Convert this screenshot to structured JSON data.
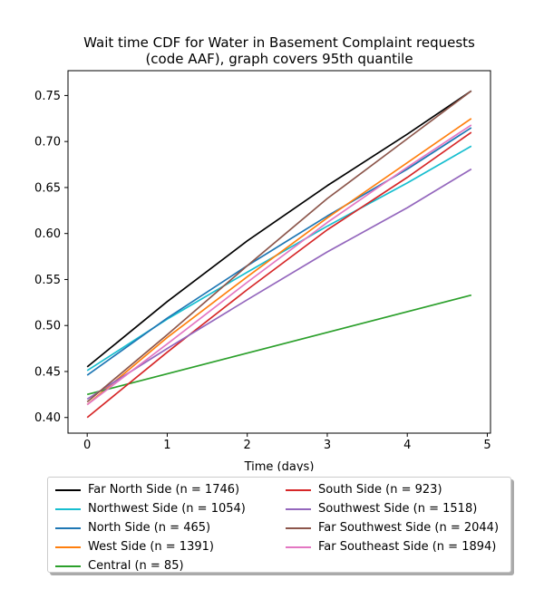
{
  "chart_data": {
    "type": "line",
    "title_line1": "Wait time CDF for Water in Basement Complaint  requests",
    "title_line2": "(code AAF), graph covers 95th quantile",
    "xlabel": "Time (days)",
    "ylabel": "",
    "xlim": [
      -0.24,
      5.04
    ],
    "ylim": [
      0.383,
      0.777
    ],
    "xticks": [
      0,
      1,
      2,
      3,
      4,
      5
    ],
    "xtick_labels": [
      "0",
      "1",
      "2",
      "3",
      "4",
      "5"
    ],
    "yticks": [
      0.4,
      0.45,
      0.5,
      0.55,
      0.6,
      0.65,
      0.7,
      0.75
    ],
    "ytick_labels": [
      "0.40",
      "0.45",
      "0.50",
      "0.55",
      "0.60",
      "0.65",
      "0.70",
      "0.75"
    ],
    "legend_placement": "below",
    "series": [
      {
        "name": "Far North Side (n = 1746)",
        "color": "#000000",
        "x": [
          0,
          1,
          2,
          3,
          4,
          4.8
        ],
        "y": [
          0.455,
          0.526,
          0.592,
          0.652,
          0.708,
          0.755
        ]
      },
      {
        "name": "Northwest Side (n = 1054)",
        "color": "#17becf",
        "x": [
          0,
          1,
          2,
          3,
          4,
          4.8
        ],
        "y": [
          0.451,
          0.507,
          0.558,
          0.608,
          0.655,
          0.695
        ]
      },
      {
        "name": "North Side (n = 465)",
        "color": "#1f77b4",
        "x": [
          0,
          1,
          2,
          3,
          4,
          4.8
        ],
        "y": [
          0.446,
          0.508,
          0.565,
          0.619,
          0.67,
          0.715
        ]
      },
      {
        "name": "West Side (n = 1391)",
        "color": "#ff7f0e",
        "x": [
          0,
          1,
          2,
          3,
          4,
          4.8
        ],
        "y": [
          0.414,
          0.487,
          0.553,
          0.617,
          0.677,
          0.725
        ]
      },
      {
        "name": "Central (n = 85)",
        "color": "#2ca02c",
        "x": [
          0,
          4.8
        ],
        "y": [
          0.425,
          0.533
        ]
      },
      {
        "name": "South Side (n = 923)",
        "color": "#d62728",
        "x": [
          0,
          1,
          2,
          3,
          4,
          4.8
        ],
        "y": [
          0.4,
          0.471,
          0.539,
          0.604,
          0.661,
          0.71
        ]
      },
      {
        "name": "Southwest Side (n = 1518)",
        "color": "#9467bd",
        "x": [
          0,
          1,
          2,
          3,
          4,
          4.8
        ],
        "y": [
          0.42,
          0.475,
          0.528,
          0.58,
          0.628,
          0.67
        ]
      },
      {
        "name": "Far Southwest Side (n = 2044)",
        "color": "#8c564b",
        "x": [
          0,
          1,
          2,
          3,
          4,
          4.8
        ],
        "y": [
          0.417,
          0.49,
          0.565,
          0.638,
          0.703,
          0.755
        ]
      },
      {
        "name": "Far Southeast Side (n = 1894)",
        "color": "#e377c2",
        "x": [
          0,
          1,
          2,
          3,
          4,
          4.8
        ],
        "y": [
          0.414,
          0.48,
          0.547,
          0.612,
          0.672,
          0.718
        ]
      }
    ]
  }
}
